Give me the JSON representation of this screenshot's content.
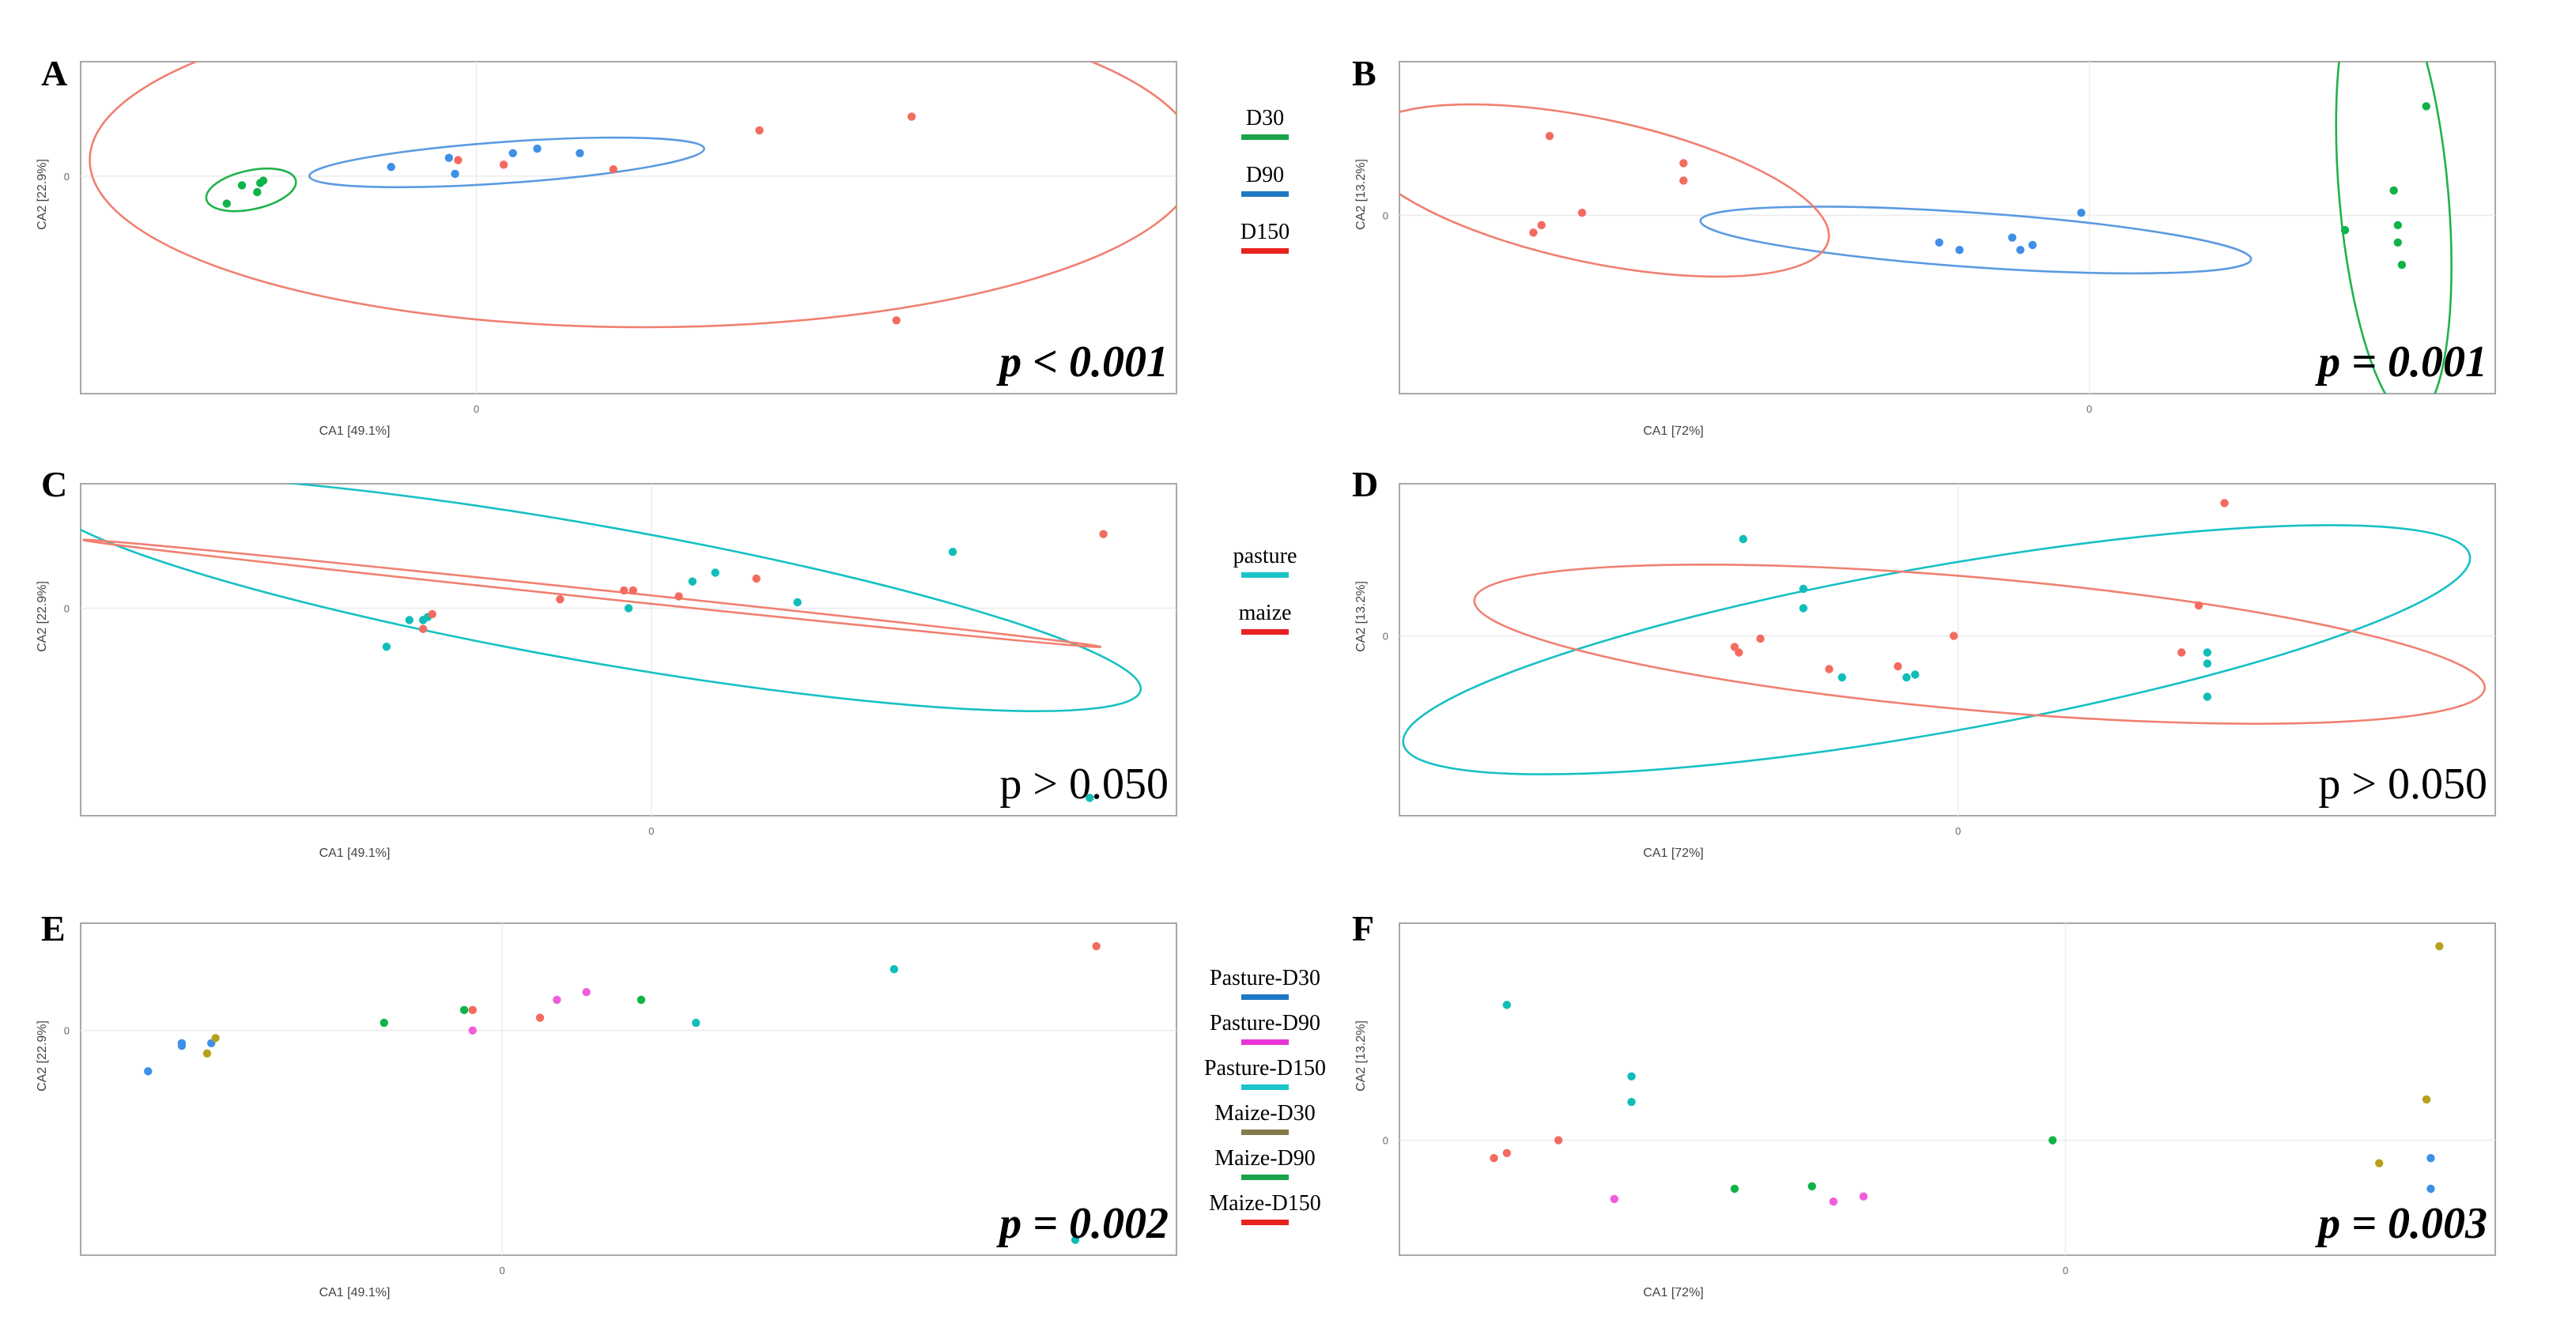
{
  "figure": {
    "colors": {
      "D30": "#1aa34a",
      "D90": "#1f77c4",
      "D150": "#e8221f",
      "ell_D30": "#21b24b",
      "ell_D90": "#5b9be0",
      "ell_D150": "#f08070",
      "pasture": "#19c4c9",
      "maize": "#e8221f",
      "ell_pasture": "#17c0c4",
      "ell_maize": "#f08070",
      "Pasture-D30": "#1f77c4",
      "Pasture-D90": "#e834d4",
      "Pasture-D150": "#19c4c9",
      "Maize-D30": "#857a4a",
      "Maize-D90": "#1aa34a",
      "Maize-D150": "#e8221f",
      "pt_green": "#0fb34a",
      "pt_blue": "#3e8fe6",
      "pt_red": "#f36b5f",
      "pt_cyan": "#10bdb8",
      "pt_magenta": "#f05ddc",
      "pt_olive": "#b5a21a"
    },
    "legends": [
      {
        "id": "legend-day",
        "items": [
          {
            "label": "D30",
            "color": "#1aa34a"
          },
          {
            "label": "D90",
            "color": "#1f77c4"
          },
          {
            "label": "D150",
            "color": "#e8221f"
          }
        ]
      },
      {
        "id": "legend-diet",
        "items": [
          {
            "label": "pasture",
            "color": "#19c4c9"
          },
          {
            "label": "maize",
            "color": "#e8221f"
          }
        ]
      },
      {
        "id": "legend-combo",
        "items": [
          {
            "label": "Pasture-D30",
            "color": "#1f77c4"
          },
          {
            "label": "Pasture-D90",
            "color": "#e834d4"
          },
          {
            "label": "Pasture-D150",
            "color": "#19c4c9"
          },
          {
            "label": "Maize-D30",
            "color": "#857a4a"
          },
          {
            "label": "Maize-D90",
            "color": "#1aa34a"
          },
          {
            "label": "Maize-D150",
            "color": "#e8221f"
          }
        ]
      }
    ]
  },
  "chart_data": [
    {
      "type": "scatter",
      "panel": "A",
      "xlabel": "CA1   [49.1%]",
      "ylabel": "CA2   [22.9%]",
      "xlim": [
        -1.3,
        2.3
      ],
      "ylim": [
        -0.95,
        0.5
      ],
      "xticks": [
        {
          "v": 0,
          "label": "0"
        }
      ],
      "yticks": [
        {
          "v": 0,
          "label": "0"
        }
      ],
      "p_text": "p < 0.001",
      "p_style": "bold",
      "series": [
        {
          "name": "D30",
          "color": "#0fb34a",
          "points": [
            [
              -0.82,
              -0.12
            ],
            [
              -0.77,
              -0.04
            ],
            [
              -0.72,
              -0.07
            ],
            [
              -0.71,
              -0.03
            ],
            [
              -0.7,
              -0.02
            ]
          ]
        },
        {
          "name": "D90",
          "color": "#3e8fe6",
          "points": [
            [
              -0.28,
              0.04
            ],
            [
              -0.09,
              0.08
            ],
            [
              -0.07,
              0.01
            ],
            [
              0.12,
              0.1
            ],
            [
              0.2,
              0.12
            ],
            [
              0.34,
              0.1
            ]
          ]
        },
        {
          "name": "D150",
          "color": "#f36b5f",
          "points": [
            [
              -0.06,
              0.07
            ],
            [
              0.09,
              0.05
            ],
            [
              0.45,
              0.03
            ],
            [
              0.93,
              0.2
            ],
            [
              1.43,
              0.26
            ],
            [
              1.38,
              -0.63
            ]
          ]
        }
      ],
      "ellipses": [
        {
          "name": "D30",
          "color": "#21b24b",
          "cx": -0.74,
          "cy": -0.06,
          "rx": 0.15,
          "ry": 0.085,
          "angle": 12
        },
        {
          "name": "D90",
          "color": "#5b9be0",
          "cx": 0.1,
          "cy": 0.06,
          "rx": 0.65,
          "ry": 0.09,
          "angle": 4
        },
        {
          "name": "D150",
          "color": "#f08070",
          "cx": 0.55,
          "cy": 0.07,
          "rx": 1.82,
          "ry": 0.73,
          "angle": 0
        }
      ]
    },
    {
      "type": "scatter",
      "panel": "B",
      "xlabel": "CA1   [72%]",
      "ylabel": "CA2   [13.2%]",
      "xlim": [
        -1.7,
        1.0
      ],
      "ylim": [
        -0.72,
        0.62
      ],
      "xticks": [
        {
          "v": 0,
          "label": "0"
        }
      ],
      "yticks": [
        {
          "v": 0,
          "label": "0"
        }
      ],
      "p_text": "p = 0.001",
      "p_style": "bold",
      "series": [
        {
          "name": "D30",
          "color": "#0fb34a",
          "points": [
            [
              0.63,
              -0.06
            ],
            [
              0.75,
              0.1
            ],
            [
              0.76,
              -0.04
            ],
            [
              0.76,
              -0.11
            ],
            [
              0.77,
              -0.2
            ],
            [
              0.83,
              0.44
            ]
          ]
        },
        {
          "name": "D90",
          "color": "#3e8fe6",
          "points": [
            [
              -0.37,
              -0.11
            ],
            [
              -0.32,
              -0.14
            ],
            [
              -0.19,
              -0.09
            ],
            [
              -0.17,
              -0.14
            ],
            [
              -0.14,
              -0.12
            ],
            [
              -0.02,
              0.01
            ]
          ]
        },
        {
          "name": "D150",
          "color": "#f36b5f",
          "points": [
            [
              -1.35,
              -0.04
            ],
            [
              -1.37,
              -0.07
            ],
            [
              -1.33,
              0.32
            ],
            [
              -1.25,
              0.01
            ],
            [
              -1.0,
              0.14
            ],
            [
              -1.0,
              0.21
            ]
          ]
        }
      ],
      "ellipses": [
        {
          "name": "D30",
          "color": "#21b24b",
          "cx": 0.75,
          "cy": 0.08,
          "rx": 0.55,
          "ry": 0.22,
          "angle": 95
        },
        {
          "name": "D90",
          "color": "#5b9be0",
          "cx": -0.28,
          "cy": -0.1,
          "rx": 0.68,
          "ry": 0.11,
          "angle": -4
        },
        {
          "name": "D150",
          "color": "#f08070",
          "cx": -1.22,
          "cy": 0.1,
          "rx": 0.59,
          "ry": 0.29,
          "angle": -12
        }
      ]
    },
    {
      "type": "scatter",
      "panel": "C",
      "xlabel": "CA1   [49.1%]",
      "ylabel": "CA2   [22.9%]",
      "xlim": [
        -1.25,
        1.15
      ],
      "ylim": [
        -0.7,
        0.42
      ],
      "xticks": [
        {
          "v": 0,
          "label": "0"
        }
      ],
      "yticks": [
        {
          "v": 0,
          "label": "0"
        }
      ],
      "p_text": "p > 0.050",
      "p_style": "plain",
      "series": [
        {
          "name": "pasture",
          "color": "#10bdb8",
          "points": [
            [
              -0.58,
              -0.13
            ],
            [
              -0.53,
              -0.04
            ],
            [
              -0.5,
              -0.04
            ],
            [
              -0.49,
              -0.03
            ],
            [
              -0.05,
              0.0
            ],
            [
              0.09,
              0.09
            ],
            [
              0.14,
              0.12
            ],
            [
              0.32,
              0.02
            ],
            [
              0.66,
              0.19
            ],
            [
              0.96,
              -0.64
            ]
          ]
        },
        {
          "name": "maize",
          "color": "#f36b5f",
          "points": [
            [
              -0.5,
              -0.07
            ],
            [
              -0.48,
              -0.02
            ],
            [
              -0.2,
              0.03
            ],
            [
              -0.06,
              0.06
            ],
            [
              -0.04,
              0.06
            ],
            [
              0.06,
              0.04
            ],
            [
              0.23,
              0.1
            ],
            [
              0.99,
              0.25
            ]
          ]
        }
      ],
      "ellipses": [
        {
          "name": "pasture",
          "color": "#17c0c4",
          "cx": -0.13,
          "cy": 0.05,
          "rx": 1.22,
          "ry": 0.23,
          "angle": -10
        },
        {
          "name": "maize",
          "color": "#f08070",
          "cx": -0.13,
          "cy": 0.05,
          "rx": 1.12,
          "ry": 0.014,
          "angle": -6
        }
      ]
    },
    {
      "type": "scatter",
      "panel": "D",
      "xlabel": "CA1   [72%]",
      "ylabel": "CA2   [13.2%]",
      "xlim": [
        -1.3,
        1.25
      ],
      "ylim": [
        -0.65,
        0.55
      ],
      "xticks": [
        {
          "v": 0,
          "label": "0"
        }
      ],
      "yticks": [
        {
          "v": 0,
          "label": "0"
        }
      ],
      "p_text": "p > 0.050",
      "p_style": "plain",
      "series": [
        {
          "name": "pasture",
          "color": "#10bdb8",
          "points": [
            [
              -0.5,
              0.35
            ],
            [
              -0.36,
              0.17
            ],
            [
              -0.36,
              0.1
            ],
            [
              -0.27,
              -0.15
            ],
            [
              -0.12,
              -0.15
            ],
            [
              -0.1,
              -0.14
            ],
            [
              0.58,
              -0.1
            ],
            [
              0.58,
              -0.06
            ],
            [
              0.58,
              -0.22
            ]
          ]
        },
        {
          "name": "maize",
          "color": "#f36b5f",
          "points": [
            [
              -0.52,
              -0.04
            ],
            [
              -0.51,
              -0.06
            ],
            [
              -0.46,
              -0.01
            ],
            [
              -0.3,
              -0.12
            ],
            [
              -0.14,
              -0.11
            ],
            [
              -0.01,
              0.0
            ],
            [
              0.52,
              -0.06
            ],
            [
              0.56,
              0.11
            ],
            [
              0.62,
              0.48
            ]
          ]
        }
      ],
      "ellipses": [
        {
          "name": "pasture",
          "color": "#17c0c4",
          "cx": -0.05,
          "cy": -0.05,
          "rx": 1.26,
          "ry": 0.3,
          "angle": 10
        },
        {
          "name": "maize",
          "color": "#f08070",
          "cx": 0.05,
          "cy": -0.03,
          "rx": 1.18,
          "ry": 0.24,
          "angle": -5
        }
      ]
    },
    {
      "type": "scatter",
      "panel": "E",
      "xlabel": "CA1   [49.1%]",
      "ylabel": "CA2   [22.9%]",
      "xlim": [
        -1.0,
        1.6
      ],
      "ylim": [
        -0.88,
        0.42
      ],
      "xticks": [
        {
          "v": 0,
          "label": "0"
        }
      ],
      "yticks": [
        {
          "v": 0,
          "label": "0"
        }
      ],
      "p_text": "p = 0.002",
      "p_style": "bold",
      "series": [
        {
          "name": "Pasture-D30",
          "color": "#3e8fe6",
          "points": [
            [
              -0.84,
              -0.16
            ],
            [
              -0.76,
              -0.06
            ],
            [
              -0.76,
              -0.05
            ],
            [
              -0.69,
              -0.05
            ]
          ]
        },
        {
          "name": "Pasture-D90",
          "color": "#f05ddc",
          "points": [
            [
              -0.07,
              0.0
            ],
            [
              0.13,
              0.12
            ],
            [
              0.2,
              0.15
            ]
          ]
        },
        {
          "name": "Pasture-D150",
          "color": "#10bdb8",
          "points": [
            [
              0.46,
              0.03
            ],
            [
              0.93,
              0.24
            ],
            [
              1.36,
              -0.82
            ]
          ]
        },
        {
          "name": "Maize-D30",
          "color": "#b5a21a",
          "points": [
            [
              -0.7,
              -0.09
            ],
            [
              -0.68,
              -0.03
            ]
          ]
        },
        {
          "name": "Maize-D90",
          "color": "#0fb34a",
          "points": [
            [
              -0.28,
              0.03
            ],
            [
              -0.09,
              0.08
            ],
            [
              0.33,
              0.12
            ]
          ]
        },
        {
          "name": "Maize-D150",
          "color": "#f36b5f",
          "points": [
            [
              -0.07,
              0.08
            ],
            [
              0.09,
              0.05
            ],
            [
              1.41,
              0.33
            ]
          ]
        }
      ],
      "ellipses": []
    },
    {
      "type": "scatter",
      "panel": "F",
      "xlabel": "CA1   [72%]",
      "ylabel": "CA2   [13.2%]",
      "xlim": [
        -1.55,
        1.0
      ],
      "ylim": [
        -0.45,
        0.85
      ],
      "xticks": [
        {
          "v": 0,
          "label": "0"
        }
      ],
      "yticks": [
        {
          "v": 0,
          "label": "0"
        }
      ],
      "p_text": "p = 0.003",
      "p_style": "bold",
      "series": [
        {
          "name": "Pasture-D30",
          "color": "#3e8fe6",
          "points": [
            [
              0.85,
              -0.07
            ],
            [
              0.85,
              -0.19
            ]
          ]
        },
        {
          "name": "Pasture-D90",
          "color": "#f05ddc",
          "points": [
            [
              -1.05,
              -0.23
            ],
            [
              -0.54,
              -0.24
            ],
            [
              -0.47,
              -0.22
            ]
          ]
        },
        {
          "name": "Pasture-D150",
          "color": "#10bdb8",
          "points": [
            [
              -1.3,
              0.53
            ],
            [
              -1.01,
              0.25
            ],
            [
              -1.01,
              0.15
            ]
          ]
        },
        {
          "name": "Maize-D30",
          "color": "#b5a21a",
          "points": [
            [
              0.73,
              -0.09
            ],
            [
              0.84,
              0.16
            ],
            [
              0.87,
              0.76
            ]
          ]
        },
        {
          "name": "Maize-D90",
          "color": "#0fb34a",
          "points": [
            [
              -0.77,
              -0.19
            ],
            [
              -0.59,
              -0.18
            ],
            [
              -0.03,
              0.0
            ]
          ]
        },
        {
          "name": "Maize-D150",
          "color": "#f36b5f",
          "points": [
            [
              -1.33,
              -0.07
            ],
            [
              -1.3,
              -0.05
            ],
            [
              -1.18,
              0.0
            ]
          ]
        }
      ],
      "ellipses": []
    }
  ]
}
